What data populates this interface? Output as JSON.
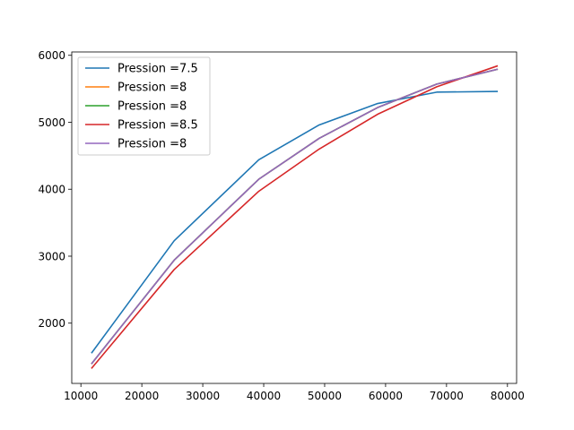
{
  "chart_data": {
    "type": "line",
    "title": "",
    "xlabel": "",
    "ylabel": "",
    "xlim": [
      8500,
      81500
    ],
    "ylim": [
      1100,
      6050
    ],
    "xticks": [
      10000,
      20000,
      30000,
      40000,
      50000,
      60000,
      70000,
      80000
    ],
    "xtick_labels": [
      "10000",
      "20000",
      "30000",
      "40000",
      "50000",
      "60000",
      "70000",
      "80000"
    ],
    "yticks": [
      2000,
      3000,
      4000,
      5000,
      6000
    ],
    "ytick_labels": [
      "2000",
      "3000",
      "4000",
      "5000",
      "6000"
    ],
    "grid": false,
    "legend_position": "upper-left",
    "series": [
      {
        "name": "Pression =7.5",
        "color": "#1f77b4",
        "x": [
          11800,
          25300,
          39200,
          49100,
          58700,
          68400,
          78300
        ],
        "y": [
          1560,
          3230,
          4440,
          4960,
          5280,
          5450,
          5460
        ]
      },
      {
        "name": "Pression =8",
        "color": "#ff7f0e",
        "x": [
          11800,
          25300,
          39200,
          49100,
          58700,
          68400,
          78300
        ],
        "y": [
          1400,
          2940,
          4150,
          4760,
          5220,
          5570,
          5790
        ]
      },
      {
        "name": "Pression =8",
        "color": "#2ca02c",
        "x": [
          11800,
          25300,
          39200,
          49100,
          58700,
          68400,
          78300
        ],
        "y": [
          1400,
          2940,
          4150,
          4760,
          5220,
          5570,
          5790
        ]
      },
      {
        "name": "Pression =8.5",
        "color": "#d62728",
        "x": [
          11800,
          25300,
          39200,
          49100,
          58700,
          68400,
          78300
        ],
        "y": [
          1330,
          2800,
          3970,
          4600,
          5120,
          5530,
          5840
        ]
      },
      {
        "name": "Pression =8",
        "color": "#9467bd",
        "x": [
          11800,
          25300,
          39200,
          49100,
          58700,
          68400,
          78300
        ],
        "y": [
          1400,
          2940,
          4150,
          4760,
          5220,
          5570,
          5790
        ]
      }
    ]
  }
}
